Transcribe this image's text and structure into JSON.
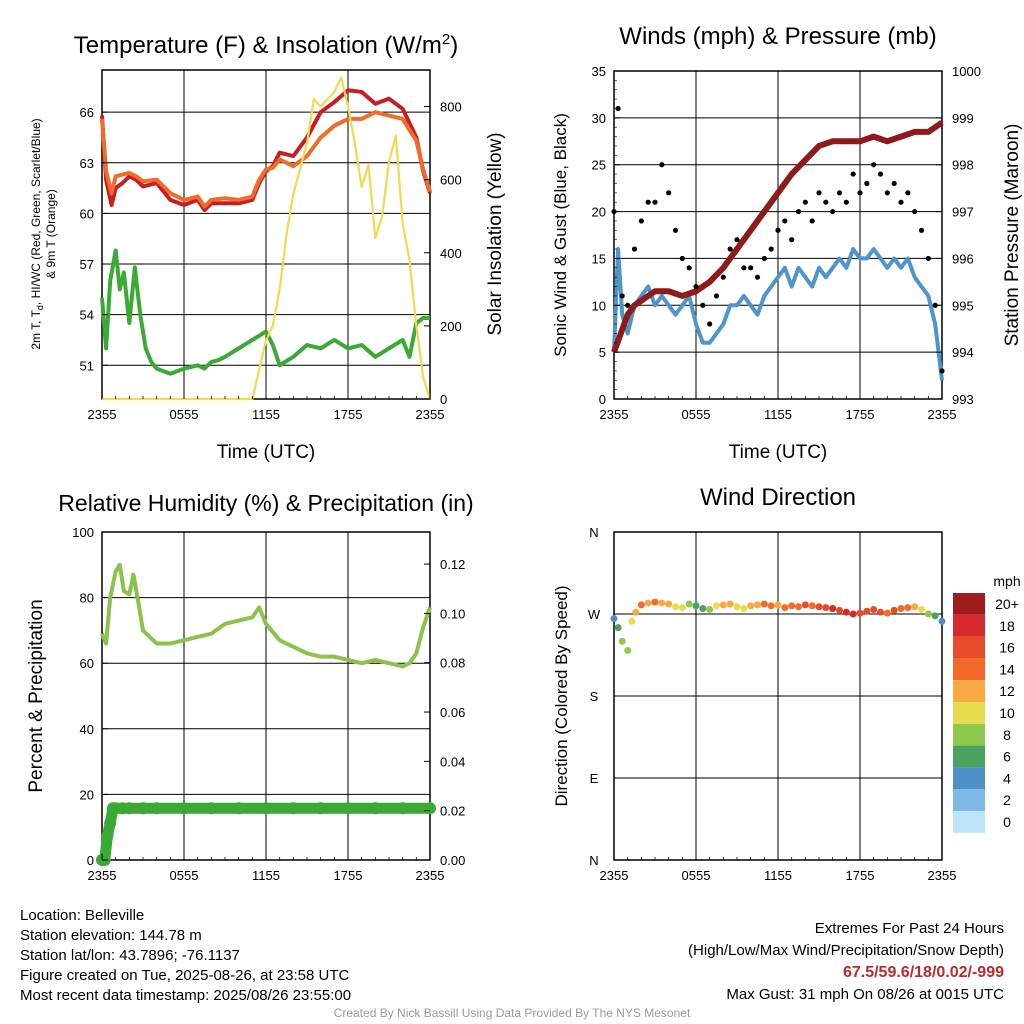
{
  "panels": {
    "temp": {
      "title": "Temperature (F) & Insolation (W/m",
      "title_sup": "2",
      "title_end": ")",
      "ylabel_line1": "2m T, T",
      "ylabel_sub": "d",
      "ylabel_line1_rest": ", HI/WC (Red, Green, Scarlet/Blue)",
      "ylabel_line2": "& 9m T (Orange)",
      "ylabel_right": "Solar Insolation (Yellow)",
      "xlabel": "Time (UTC)"
    },
    "wind": {
      "title": "Winds (mph) & Pressure (mb)",
      "ylabel_left": "Sonic Wind & Gust (Blue, Black)",
      "ylabel_right": "Station Pressure (Maroon)",
      "xlabel": "Time (UTC)"
    },
    "rh": {
      "title": "Relative Humidity (%) & Precipitation (in)",
      "ylabel_left": "Percent & Precipitation"
    },
    "dir": {
      "title": "Wind Direction",
      "ylabel_left": "Direction (Colored By Speed)",
      "legend_title": "mph"
    }
  },
  "footer": {
    "location": "Location: Belleville",
    "elevation": "Station elevation: 144.78 m",
    "latlon": "Station lat/lon: 43.7896; -76.1137",
    "created": "Figure created on Tue, 2025-08-26, at 23:58 UTC",
    "recent": "Most recent data timestamp: 2025/08/26 23:55:00",
    "extremes_title": "Extremes For Past 24 Hours",
    "extremes_desc": "(High/Low/Max Wind/Precipitation/Snow Depth)",
    "extremes_values": "67.5/59.6/18/0.02/-999",
    "max_gust": "Max Gust: 31 mph On 08/26 at 0015 UTC",
    "credit": "Created By Nick Bassill Using Data Provided By The NYS Mesonet"
  },
  "chart_data": [
    {
      "type": "line",
      "title": "Temperature (F) & Insolation (W/m2)",
      "xlabel": "Time (UTC)",
      "ylabel": "2m T, Td, HI/WC (Red, Green, Scarlet/Blue) & 9m T (Orange)",
      "ylabel_right": "Solar Insolation (Yellow)",
      "x_ticks": [
        "2355",
        "0555",
        "1155",
        "1755",
        "2355"
      ],
      "y_ticks": [
        51,
        54,
        57,
        60,
        63,
        66
      ],
      "y_right_ticks": [
        0,
        200,
        400,
        600,
        800
      ],
      "ylim": [
        49,
        68.5
      ],
      "ylim_right": [
        0,
        900
      ],
      "x_hours": [
        0,
        24
      ],
      "series": [
        {
          "color": "#c81e23",
          "axis": "left",
          "x": [
            0,
            0.3,
            0.7,
            1,
            1.5,
            2,
            2.5,
            3,
            4,
            5,
            6,
            7,
            7.5,
            8,
            9,
            10,
            11,
            11.5,
            12,
            12.5,
            13,
            14,
            15,
            16,
            17,
            18,
            19,
            20,
            21,
            22,
            23,
            23.5,
            24
          ],
          "y": [
            65.8,
            62,
            60.5,
            61.5,
            61.8,
            62.2,
            62,
            61.6,
            61.8,
            60.8,
            60.5,
            60.8,
            60.2,
            60.6,
            60.6,
            60.6,
            60.8,
            61.8,
            62.5,
            62.8,
            63.6,
            63.4,
            64.5,
            66,
            66.6,
            67.3,
            67.2,
            66.5,
            66.8,
            66.2,
            64.5,
            62.5,
            61.2
          ]
        },
        {
          "color": "#f26b2a",
          "axis": "left",
          "x": [
            0,
            0.3,
            0.7,
            1,
            1.5,
            2,
            2.5,
            3,
            4,
            5,
            6,
            7,
            7.5,
            8,
            9,
            10,
            11,
            11.5,
            12,
            12.5,
            13,
            14,
            15,
            16,
            17,
            18,
            19,
            20,
            21,
            22,
            23,
            23.5,
            24
          ],
          "y": [
            65.6,
            62.5,
            61.2,
            62.2,
            62.3,
            62.4,
            62.2,
            61.9,
            62,
            61.2,
            60.8,
            61,
            60.4,
            60.8,
            60.9,
            60.8,
            61,
            62,
            62.6,
            62.7,
            63.2,
            62.8,
            63.4,
            64.5,
            65.2,
            65.6,
            65.6,
            66,
            65.8,
            65.6,
            64.3,
            62.6,
            61.3
          ]
        },
        {
          "color": "#3aaa35",
          "axis": "left",
          "x": [
            0,
            0.3,
            0.6,
            1,
            1.3,
            1.6,
            2,
            2.4,
            2.8,
            3.2,
            3.6,
            4,
            5,
            6,
            7,
            7.5,
            8,
            8.5,
            9,
            10,
            11,
            12,
            12.5,
            13,
            14,
            15,
            16,
            17,
            18,
            19,
            20,
            21,
            22,
            22.5,
            23,
            23.5,
            24
          ],
          "y": [
            55,
            52,
            56,
            57.8,
            55.5,
            56.5,
            53.5,
            56.8,
            54,
            52,
            51.2,
            50.8,
            50.5,
            50.8,
            51,
            50.8,
            51.2,
            51.3,
            51.5,
            52,
            52.5,
            53,
            52.2,
            51,
            51.5,
            52.2,
            52,
            52.5,
            52,
            52.2,
            51.5,
            52,
            52.5,
            51.5,
            53.5,
            53.8,
            53.8
          ]
        },
        {
          "color": "#f4d94e",
          "axis": "right",
          "x": [
            0,
            9,
            10,
            11,
            11.5,
            12,
            12.5,
            13,
            13.5,
            14,
            15,
            15.5,
            16,
            17,
            17.5,
            18,
            18.5,
            19,
            19.5,
            20,
            20.5,
            21,
            21.5,
            22,
            22.5,
            23,
            23.5,
            24
          ],
          "y": [
            0,
            0,
            0,
            0,
            80,
            160,
            200,
            300,
            450,
            560,
            700,
            820,
            800,
            840,
            880,
            800,
            700,
            580,
            640,
            440,
            500,
            650,
            720,
            480,
            380,
            200,
            60,
            0
          ]
        }
      ]
    },
    {
      "type": "line",
      "title": "Winds (mph) & Pressure (mb)",
      "xlabel": "Time (UTC)",
      "ylabel": "Sonic Wind & Gust (Blue, Black)",
      "ylabel_right": "Station Pressure (Maroon)",
      "x_ticks": [
        "2355",
        "0555",
        "1155",
        "1755",
        "2355"
      ],
      "y_ticks": [
        0,
        5,
        10,
        15,
        20,
        25,
        30,
        35
      ],
      "y_right_ticks": [
        993,
        994,
        995,
        996,
        997,
        998,
        999,
        1000
      ],
      "ylim": [
        0,
        35
      ],
      "ylim_right": [
        993,
        1000
      ],
      "x_hours": [
        0,
        24
      ],
      "series": [
        {
          "color": "#4e95cd",
          "axis": "left",
          "x": [
            0,
            0.3,
            0.6,
            1,
            1.5,
            2,
            2.5,
            3,
            3.5,
            4,
            4.5,
            5,
            5.5,
            6,
            6.5,
            7,
            7.5,
            8,
            8.5,
            9,
            9.5,
            10,
            10.5,
            11,
            11.5,
            12,
            12.5,
            13,
            13.5,
            14,
            14.5,
            15,
            15.5,
            16,
            16.5,
            17,
            17.5,
            18,
            18.5,
            19,
            19.5,
            20,
            20.5,
            21,
            21.5,
            22,
            22.5,
            23,
            23.5,
            24
          ],
          "y": [
            5,
            16,
            9,
            7,
            10,
            11,
            12,
            10,
            11,
            10,
            9,
            10,
            11,
            8,
            6,
            6,
            7,
            8,
            10,
            10,
            11,
            10,
            9,
            11,
            12,
            13,
            14,
            12,
            14,
            13,
            12,
            14,
            13,
            14,
            15,
            14,
            16,
            15,
            15,
            16,
            15,
            14,
            15,
            14,
            15,
            13,
            12,
            11,
            8,
            2
          ]
        },
        {
          "color": "#8e1a1a",
          "axis": "right",
          "x": [
            0,
            0.5,
            1,
            1.5,
            2,
            2.5,
            3,
            4,
            5,
            6,
            7,
            8,
            9,
            10,
            11,
            12,
            13,
            14,
            15,
            16,
            17,
            18,
            19,
            20,
            21,
            22,
            23,
            24
          ],
          "y": [
            994,
            994.4,
            994.8,
            995,
            995.1,
            995.2,
            995.3,
            995.3,
            995.2,
            995.3,
            995.5,
            995.8,
            996.2,
            996.6,
            997,
            997.4,
            997.8,
            998.1,
            998.4,
            998.5,
            998.5,
            998.5,
            998.6,
            998.5,
            998.6,
            998.7,
            998.7,
            998.9
          ]
        },
        {
          "color": "#000000",
          "axis": "left",
          "style": "points",
          "x": [
            0,
            0.3,
            0.6,
            1,
            1.5,
            2,
            2.5,
            3,
            3.5,
            4,
            4.5,
            5,
            5.5,
            6,
            6.5,
            7,
            7.5,
            8,
            8.5,
            9,
            9.5,
            10,
            10.5,
            11,
            11.5,
            12,
            12.5,
            13,
            13.5,
            14,
            14.5,
            15,
            15.5,
            16,
            16.5,
            17,
            17.5,
            18,
            18.5,
            19,
            19.5,
            20,
            20.5,
            21,
            21.5,
            22,
            22.5,
            23,
            23.5,
            24
          ],
          "y": [
            20,
            31,
            11,
            10,
            16,
            19,
            21,
            21,
            25,
            22,
            18,
            15,
            14,
            12,
            10,
            8,
            11,
            13,
            16,
            17,
            14,
            14,
            13,
            15,
            16,
            18,
            19,
            17,
            20,
            21,
            19,
            22,
            21,
            20,
            22,
            21,
            24,
            22,
            23,
            25,
            24,
            22,
            23,
            21,
            22,
            20,
            18,
            15,
            10,
            3
          ]
        }
      ]
    },
    {
      "type": "line",
      "title": "Relative Humidity (%) & Precipitation (in)",
      "ylabel": "Percent & Precipitation",
      "x_ticks": [
        "2355",
        "0555",
        "1155",
        "1755",
        "2355"
      ],
      "y_ticks": [
        0,
        20,
        40,
        60,
        80,
        100
      ],
      "y_right_ticks": [
        0.0,
        0.02,
        0.04,
        0.06,
        0.08,
        0.1,
        0.12
      ],
      "ylim": [
        0,
        100
      ],
      "ylim_right": [
        0,
        0.133
      ],
      "x_hours": [
        0,
        24
      ],
      "series": [
        {
          "color": "#8bc34a",
          "axis": "left",
          "x": [
            0,
            0.3,
            0.6,
            1,
            1.3,
            1.6,
            2,
            2.3,
            2.6,
            3,
            3.5,
            4,
            5,
            6,
            7,
            8,
            9,
            10,
            11,
            11.5,
            12,
            13,
            14,
            15,
            16,
            17,
            18,
            19,
            20,
            21,
            22,
            22.5,
            23,
            23.5,
            24
          ],
          "y": [
            69,
            66,
            80,
            88,
            90,
            82,
            81,
            87,
            80,
            70,
            68,
            66,
            66,
            67,
            68,
            69,
            72,
            73,
            74,
            77,
            72,
            67,
            65,
            63,
            62,
            62,
            61,
            60,
            61,
            60,
            59,
            60,
            63,
            71,
            77
          ]
        },
        {
          "color": "#3aaa35",
          "axis": "right",
          "style": "markers",
          "x": [
            0,
            0.2,
            0.4,
            0.6,
            0.8,
            1,
            1.5,
            2,
            3,
            4,
            6,
            8,
            10,
            12,
            14,
            16,
            18,
            20,
            22,
            24
          ],
          "y": [
            0,
            0,
            0.01,
            0.015,
            0.021,
            0.021,
            0.021,
            0.021,
            0.021,
            0.021,
            0.021,
            0.021,
            0.021,
            0.021,
            0.021,
            0.021,
            0.021,
            0.021,
            0.021,
            0.021
          ]
        }
      ]
    },
    {
      "type": "scatter",
      "title": "Wind Direction",
      "ylabel": "Direction (Colored By Speed)",
      "x_ticks": [
        "2355",
        "0555",
        "1155",
        "1755",
        "2355"
      ],
      "y_ticks": [
        "N",
        "E",
        "S",
        "W",
        "N"
      ],
      "ylim": [
        0,
        360
      ],
      "x_hours": [
        0,
        24
      ],
      "legend": {
        "title": "mph",
        "labels": [
          "20+",
          "18",
          "16",
          "14",
          "12",
          "10",
          "8",
          "6",
          "4",
          "2",
          "0"
        ],
        "colors": [
          "#9e1b1e",
          "#d7282d",
          "#e84c2b",
          "#f26b2a",
          "#f9a943",
          "#e6dc4e",
          "#8fc94b",
          "#4aa45f",
          "#4e8fc7",
          "#7fb9e6",
          "#bfe3f7"
        ]
      },
      "series": [
        {
          "x": [
            0,
            0.3,
            0.6,
            1,
            1.3,
            1.6,
            2,
            2.5,
            3,
            3.5,
            4,
            4.5,
            5,
            5.5,
            6,
            6.5,
            7,
            7.5,
            8,
            8.5,
            9,
            9.5,
            10,
            10.5,
            11,
            11.5,
            12,
            12.5,
            13,
            13.5,
            14,
            14.5,
            15,
            15.5,
            16,
            16.5,
            17,
            17.5,
            18,
            18.5,
            19,
            19.5,
            20,
            20.5,
            21,
            21.5,
            22,
            22.5,
            23,
            23.5,
            24
          ],
          "y": [
            265,
            255,
            240,
            230,
            262,
            272,
            280,
            282,
            283,
            282,
            281,
            278,
            277,
            281,
            279,
            276,
            275,
            279,
            280,
            281,
            278,
            276,
            279,
            280,
            281,
            279,
            280,
            277,
            279,
            278,
            280,
            279,
            278,
            277,
            276,
            274,
            272,
            270,
            271,
            273,
            275,
            272,
            271,
            274,
            276,
            277,
            278,
            275,
            270,
            268,
            262
          ],
          "speed": [
            4,
            6,
            8,
            7,
            10,
            12,
            14,
            12,
            13,
            11,
            12,
            10,
            9,
            7,
            6,
            6,
            8,
            9,
            11,
            12,
            10,
            9,
            11,
            12,
            13,
            14,
            12,
            13,
            14,
            13,
            15,
            14,
            16,
            15,
            17,
            16,
            18,
            17,
            16,
            15,
            16,
            15,
            14,
            15,
            14,
            13,
            12,
            10,
            8,
            6,
            4
          ]
        }
      ]
    }
  ]
}
